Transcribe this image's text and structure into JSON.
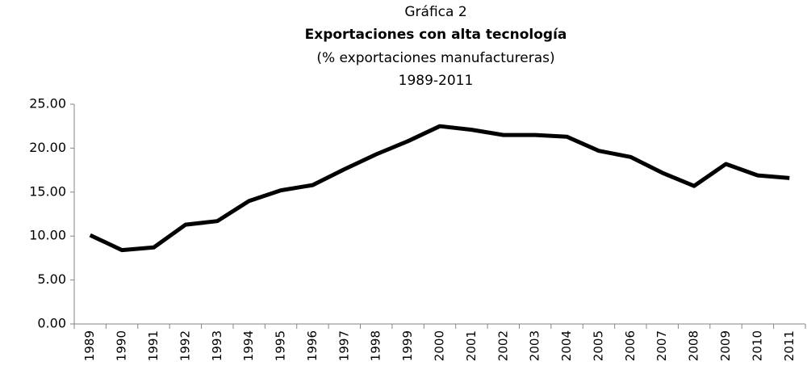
{
  "chart_data": {
    "type": "line",
    "title": "Gráfica 2",
    "subtitle": "Exportaciones con alta tecnología",
    "y_label": "(% exportaciones manufactureras)",
    "period": "1989-2011",
    "categories": [
      "1989",
      "1990",
      "1991",
      "1992",
      "1993",
      "1994",
      "1995",
      "1996",
      "1997",
      "1998",
      "1999",
      "2000",
      "2001",
      "2002",
      "2003",
      "2004",
      "2005",
      "2006",
      "2007",
      "2008",
      "2009",
      "2010",
      "2011"
    ],
    "series": [
      {
        "color": "#000000",
        "values": [
          10.1,
          8.4,
          8.7,
          11.3,
          11.7,
          14.0,
          15.2,
          15.8,
          17.6,
          19.3,
          20.8,
          22.5,
          22.1,
          21.5,
          21.5,
          21.3,
          19.7,
          19.0,
          17.2,
          15.7,
          18.2,
          16.9,
          16.6
        ]
      }
    ],
    "ylim": [
      0,
      25
    ],
    "yticks": [
      {
        "value": 0,
        "label": "0.00"
      },
      {
        "value": 5,
        "label": "5.00"
      },
      {
        "value": 10,
        "label": "10.00"
      },
      {
        "value": 15,
        "label": "15.00"
      },
      {
        "value": 20,
        "label": "20.00"
      },
      {
        "value": 25,
        "label": "25.00"
      }
    ],
    "grid": false
  }
}
